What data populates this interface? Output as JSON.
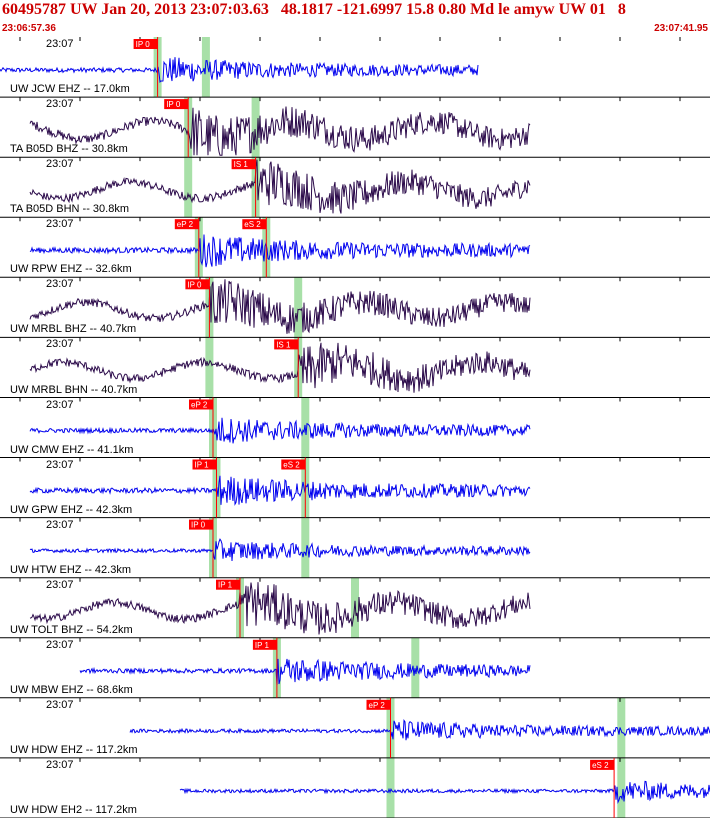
{
  "header": {
    "title": "60495787 UW Jan 20, 2013 23:07:03.63   48.1817 -121.6997 15.8 0.80 Md le amyw UW 01   8",
    "start_time": "23:06:57.36",
    "end_time": "23:07:41.95"
  },
  "colors": {
    "accent": "#cc0000",
    "pick_box": "#ff0000",
    "blue_trace": "#0000ee",
    "purple_trace": "#2b0a4a",
    "green_window": "#a8e0a8"
  },
  "traces": [
    {
      "time_label": "23:07",
      "station": "UW JCW EHZ -- 17.0km",
      "color": "#0000ee",
      "amp": 0.25,
      "picks": [
        {
          "label": "IP 0",
          "t": 0.222
        }
      ],
      "green": [
        0.222,
        0.29
      ]
    },
    {
      "time_label": "23:07",
      "station": "TA B05D BHZ -- 30.8km",
      "color": "#2b0a4a",
      "amp": 0.5,
      "picks": [
        {
          "label": "IP 0",
          "t": 0.265
        }
      ],
      "green": [
        0.265,
        0.36
      ]
    },
    {
      "time_label": "23:07",
      "station": "TA B05D BHN -- 30.8km",
      "color": "#2b0a4a",
      "amp": 0.45,
      "picks": [
        {
          "label": "IS 1",
          "t": 0.36
        }
      ],
      "green": [
        0.265,
        0.36
      ]
    },
    {
      "time_label": "23:07",
      "station": "UW RPW EHZ -- 32.6km",
      "color": "#0000ee",
      "amp": 0.3,
      "picks": [
        {
          "label": "eP 2",
          "t": 0.28
        },
        {
          "label": "eS 2",
          "t": 0.375
        }
      ],
      "green": [
        0.28,
        0.375
      ]
    },
    {
      "time_label": "23:07",
      "station": "UW MRBL BHZ -- 40.7km",
      "color": "#2b0a4a",
      "amp": 0.45,
      "picks": [
        {
          "label": "IP 0",
          "t": 0.295
        }
      ],
      "green": [
        0.295,
        0.42
      ]
    },
    {
      "time_label": "23:07",
      "station": "UW MRBL BHN -- 40.7km",
      "color": "#2b0a4a",
      "amp": 0.45,
      "picks": [
        {
          "label": "IS 1",
          "t": 0.42
        }
      ],
      "green": [
        0.295,
        0.42
      ]
    },
    {
      "time_label": "23:07",
      "station": "UW CMW EHZ -- 41.1km",
      "color": "#0000ee",
      "amp": 0.25,
      "picks": [
        {
          "label": "eP 2",
          "t": 0.3
        }
      ],
      "green": [
        0.3,
        0.43
      ]
    },
    {
      "time_label": "23:07",
      "station": "UW GPW EHZ -- 42.3km",
      "color": "#0000ee",
      "amp": 0.28,
      "picks": [
        {
          "label": "IP 1",
          "t": 0.305
        },
        {
          "label": "eS 2",
          "t": 0.43
        }
      ],
      "green": [
        0.305,
        0.43
      ]
    },
    {
      "time_label": "23:07",
      "station": "UW HTW EHZ -- 42.3km",
      "color": "#0000ee",
      "amp": 0.2,
      "picks": [
        {
          "label": "IP 0",
          "t": 0.3
        }
      ],
      "green": [
        0.3,
        0.43
      ]
    },
    {
      "time_label": "23:07",
      "station": "UW TOLT BHZ -- 54.2km",
      "color": "#2b0a4a",
      "amp": 0.45,
      "picks": [
        {
          "label": "IP 1",
          "t": 0.338
        }
      ],
      "green": [
        0.338,
        0.5
      ]
    },
    {
      "time_label": "23:07",
      "station": "UW MBW EHZ -- 68.6km",
      "color": "#0000ee",
      "amp": 0.25,
      "picks": [
        {
          "label": "IP 1",
          "t": 0.39
        }
      ],
      "green": [
        0.39,
        0.585
      ]
    },
    {
      "time_label": "23:07",
      "station": "UW HDW EHZ -- 117.2km",
      "color": "#0000ee",
      "amp": 0.2,
      "picks": [
        {
          "label": "eP 2",
          "t": 0.55
        }
      ],
      "green": [
        0.55,
        0.875
      ]
    },
    {
      "time_label": "23:07",
      "station": "UW HDW EH2 -- 117.2km",
      "color": "#0000ee",
      "amp": 0.2,
      "picks": [
        {
          "label": "eS 2",
          "t": 0.865
        }
      ],
      "green": [
        0.55,
        0.875
      ]
    }
  ]
}
